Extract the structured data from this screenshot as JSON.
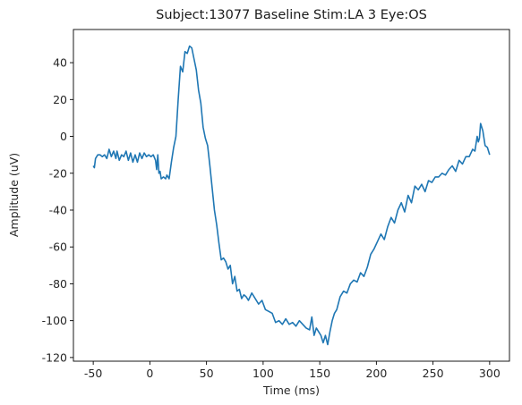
{
  "chart_data": {
    "type": "line",
    "title": "Subject:13077 Baseline Stim:LA 3 Eye:OS",
    "xlabel": "Time (ms)",
    "ylabel": "Amplitude (uV)",
    "xlim": [
      -67.5,
      317.5
    ],
    "ylim": [
      -122,
      58
    ],
    "xticks": [
      -50,
      0,
      50,
      100,
      150,
      200,
      250,
      300
    ],
    "yticks": [
      -120,
      -100,
      -80,
      -60,
      -40,
      -20,
      0,
      20,
      40
    ],
    "grid": false,
    "legend": "none",
    "line_color": "#1f77b4",
    "series": [
      {
        "x": [
          -50,
          -49,
          -48,
          -46,
          -44,
          -42,
          -40,
          -38,
          -36,
          -34,
          -32,
          -30,
          -29,
          -27,
          -25,
          -23,
          -21,
          -19,
          -17,
          -15,
          -13,
          -11,
          -9,
          -7,
          -5,
          -3,
          -1,
          1,
          3,
          5,
          6,
          7,
          8,
          9,
          10,
          12,
          14,
          15,
          17,
          19,
          21,
          23,
          25,
          27,
          29,
          31,
          33,
          35,
          37,
          39,
          41,
          43,
          45,
          47,
          49,
          51,
          53,
          55,
          57,
          59,
          61,
          63,
          65,
          67,
          69,
          71,
          73,
          75,
          77,
          79,
          81,
          83,
          85,
          87,
          90,
          93,
          96,
          99,
          102,
          105,
          108,
          111,
          114,
          117,
          120,
          123,
          126,
          129,
          132,
          135,
          138,
          141,
          143,
          145,
          147,
          149,
          151,
          153,
          155,
          157,
          159,
          161,
          163,
          165,
          168,
          171,
          174,
          177,
          180,
          183,
          186,
          189,
          192,
          195,
          198,
          201,
          204,
          207,
          210,
          213,
          216,
          219,
          222,
          225,
          228,
          231,
          234,
          237,
          240,
          243,
          246,
          249,
          252,
          255,
          258,
          261,
          264,
          267,
          270,
          273,
          276,
          279,
          282,
          285,
          287,
          289,
          290,
          291,
          292,
          294,
          296,
          298,
          300
        ],
        "y": [
          -16,
          -17,
          -12,
          -10,
          -10,
          -11,
          -10,
          -12,
          -7,
          -11,
          -8,
          -12,
          -8,
          -13,
          -10,
          -11,
          -8,
          -13,
          -9,
          -14,
          -10,
          -14,
          -9,
          -12,
          -9,
          -11,
          -10,
          -11,
          -10,
          -13,
          -18,
          -10,
          -20,
          -19,
          -23,
          -22,
          -23,
          -21,
          -23,
          -14,
          -6,
          0,
          20,
          38,
          35,
          46,
          45,
          49,
          48,
          42,
          36,
          25,
          18,
          5,
          -1,
          -5,
          -16,
          -28,
          -40,
          -48,
          -58,
          -67,
          -66,
          -68,
          -72,
          -70,
          -80,
          -76,
          -84,
          -83,
          -88,
          -86,
          -87,
          -89,
          -85,
          -88,
          -91,
          -89,
          -94,
          -95,
          -96,
          -101,
          -100,
          -102,
          -99,
          -102,
          -101,
          -103,
          -100,
          -102,
          -104,
          -105,
          -98,
          -108,
          -104,
          -106,
          -108,
          -112,
          -108,
          -113,
          -106,
          -100,
          -96,
          -94,
          -87,
          -84,
          -85,
          -80,
          -78,
          -79,
          -74,
          -76,
          -71,
          -64,
          -61,
          -57,
          -53,
          -56,
          -49,
          -44,
          -47,
          -40,
          -36,
          -41,
          -32,
          -36,
          -27,
          -29,
          -26,
          -30,
          -24,
          -25,
          -22,
          -22,
          -20,
          -21,
          -18,
          -16,
          -19,
          -13,
          -15,
          -11,
          -11,
          -7,
          -8,
          0,
          -3,
          -1,
          7,
          3,
          -5,
          -6,
          -10
        ]
      }
    ]
  }
}
